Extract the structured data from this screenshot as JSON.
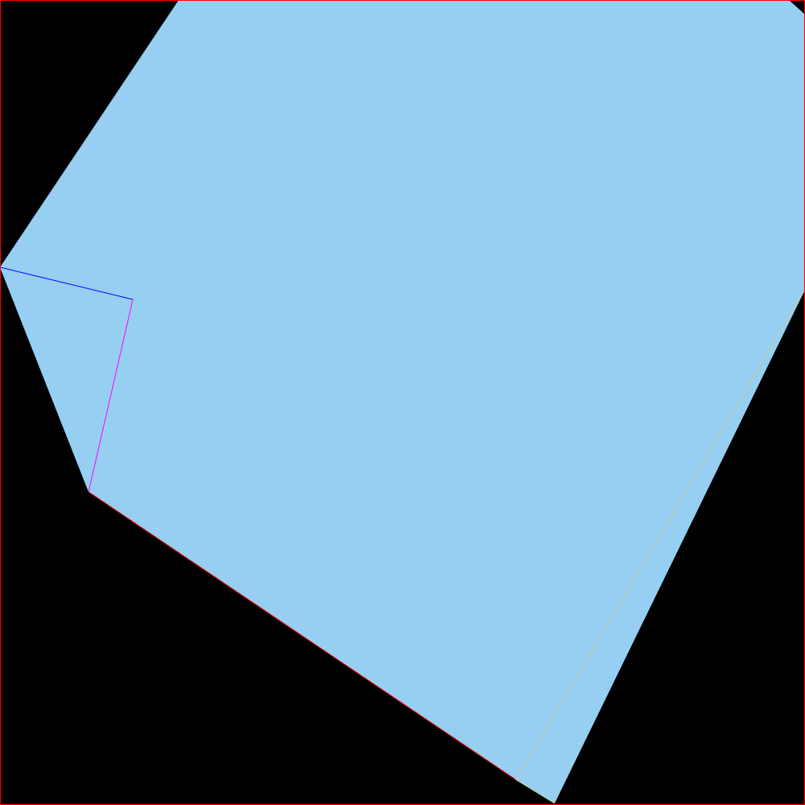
{
  "colors": {
    "background": "#000000",
    "paper_fill": "#97cff2",
    "page_border": "#ff0000",
    "fold_line_top": "#0000ff",
    "fold_line_side": "#ff00ff",
    "crease_line": "#c8c89a",
    "bottom_edge": "#ff0000"
  }
}
